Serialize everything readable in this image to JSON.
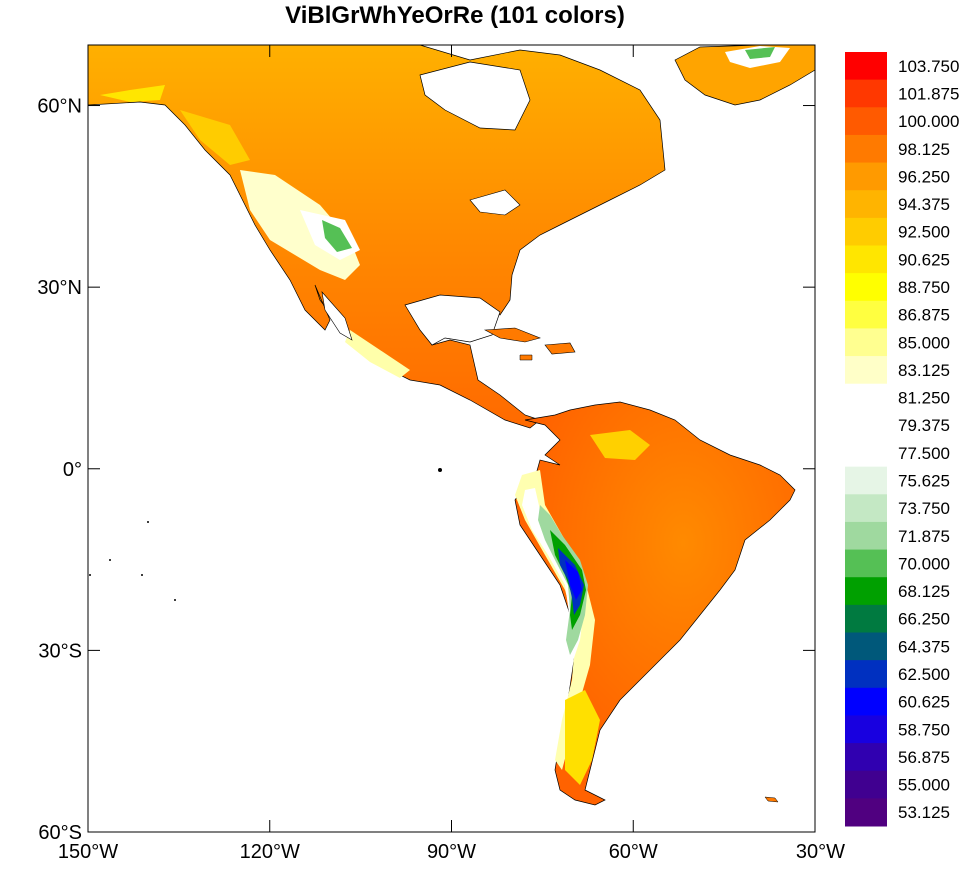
{
  "title": "ViBlGrWhYeOrRe (101 colors)",
  "map": {
    "lon_range": [
      -150,
      -30
    ],
    "lat_range": [
      -60,
      70
    ],
    "lat_ticks": [
      {
        "value": 60,
        "label": "60°N"
      },
      {
        "value": 30,
        "label": "30°N"
      },
      {
        "value": 0,
        "label": "0°"
      },
      {
        "value": -30,
        "label": "30°S"
      },
      {
        "value": -60,
        "label": "60°S"
      }
    ],
    "lon_ticks": [
      {
        "value": -150,
        "label": "150°W"
      },
      {
        "value": -120,
        "label": "120°W"
      },
      {
        "value": -90,
        "label": "90°W"
      },
      {
        "value": -60,
        "label": "60°W"
      },
      {
        "value": -30,
        "label": "30°W"
      }
    ]
  },
  "colorbar": {
    "colors": [
      "#ff0000",
      "#ff3800",
      "#ff5a00",
      "#ff7a00",
      "#ff9a00",
      "#ffb400",
      "#ffcc00",
      "#ffe600",
      "#ffff00",
      "#ffff40",
      "#ffff90",
      "#ffffc8",
      "#ffffff",
      "#ffffff",
      "#ffffff",
      "#e6f5e6",
      "#c4e8c4",
      "#9fd99f",
      "#55c055",
      "#00a000",
      "#007a40",
      "#00587a",
      "#0030c0",
      "#0000ff",
      "#1800e0",
      "#3000b0",
      "#400090",
      "#500080"
    ],
    "labels": [
      "103.750",
      "101.875",
      "100.000",
      "98.125",
      "96.250",
      "94.375",
      "92.500",
      "90.625",
      "88.750",
      "86.875",
      "85.000",
      "83.125",
      "81.250",
      "79.375",
      "77.500",
      "75.625",
      "73.750",
      "71.875",
      "70.000",
      "68.125",
      "66.250",
      "64.375",
      "62.500",
      "60.625",
      "58.750",
      "56.875",
      "55.000",
      "53.125"
    ]
  }
}
